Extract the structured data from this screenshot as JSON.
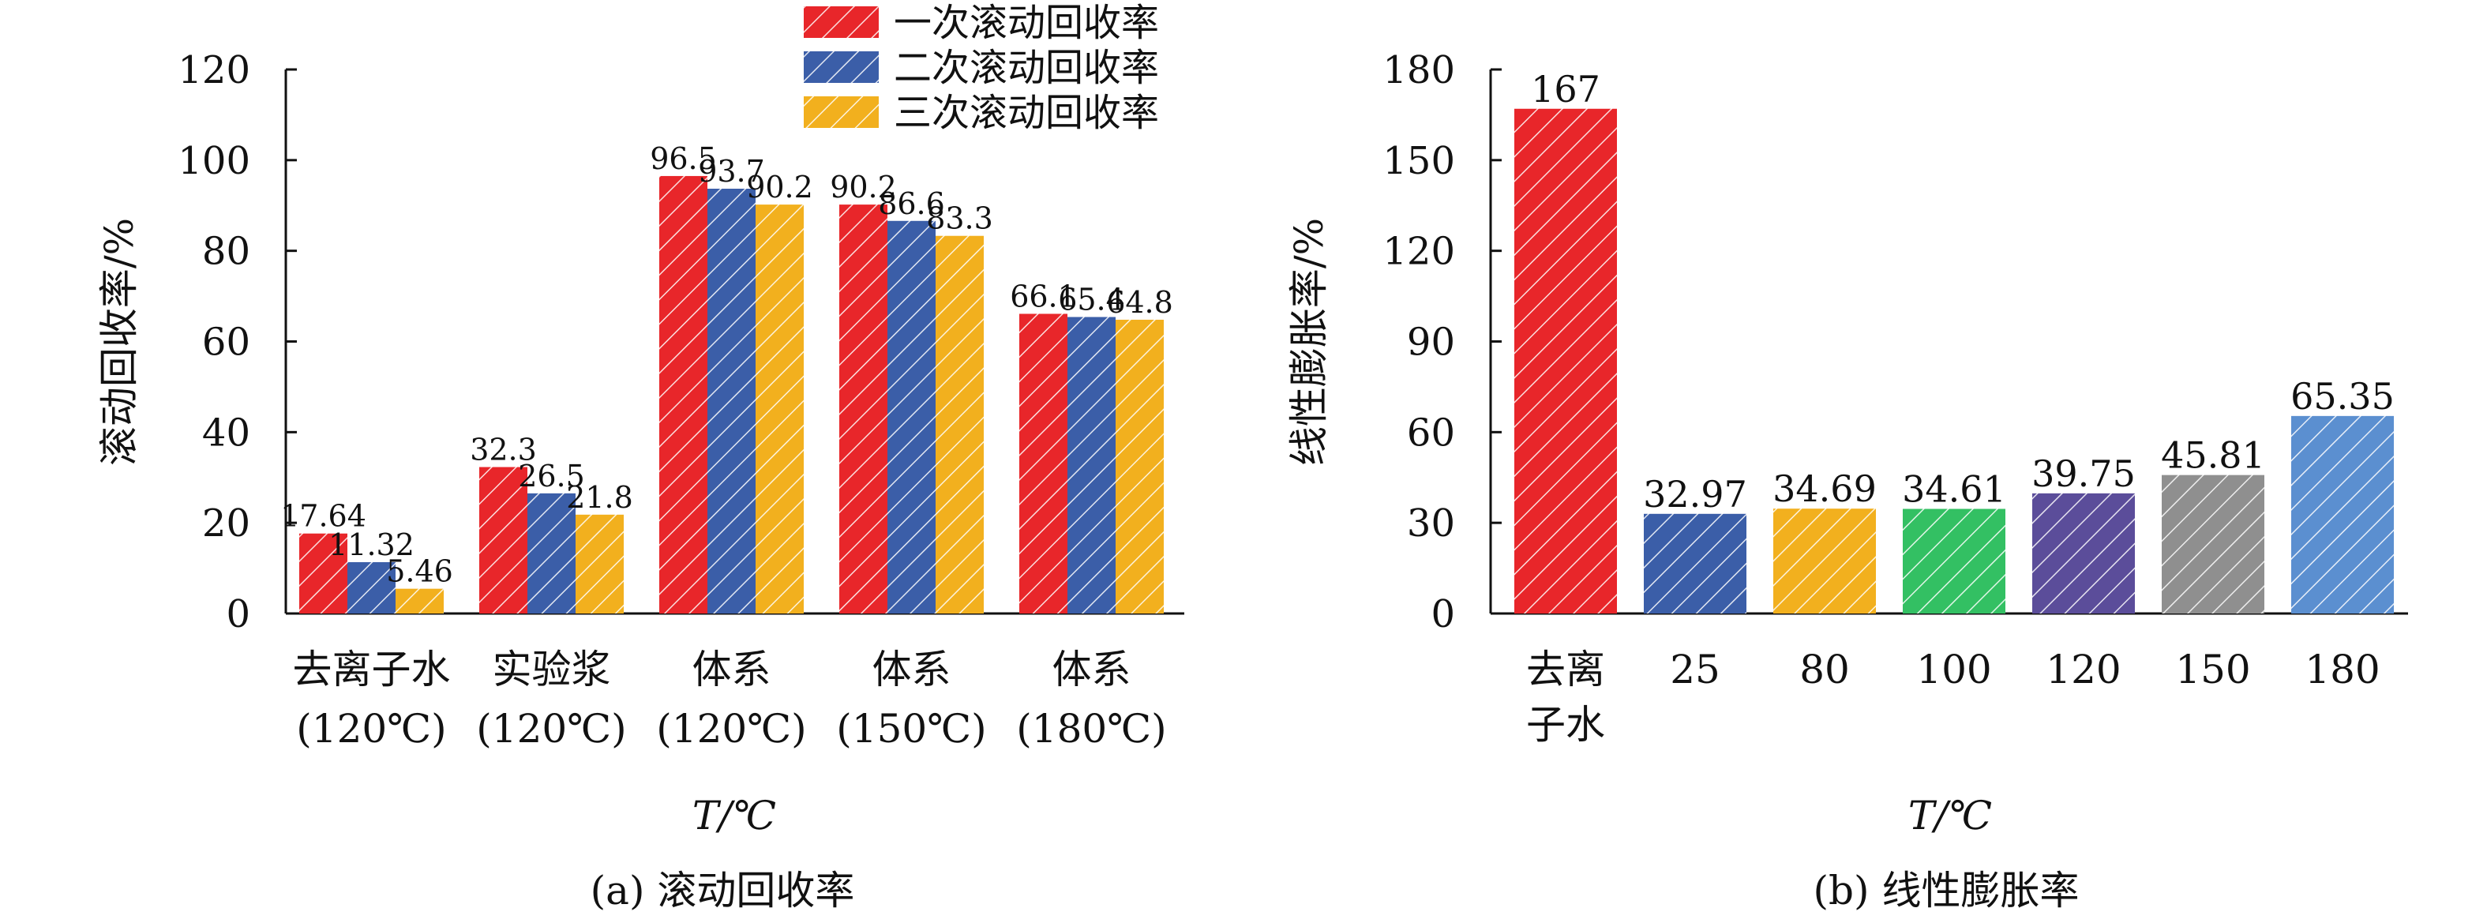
{
  "figure_label": "",
  "chart_data": [
    {
      "type": "bar",
      "panel": "a",
      "caption": "(a) 滚动回收率",
      "xlabel": "T/℃",
      "ylabel": "滚动回收率/%",
      "ylim": [
        0,
        120
      ],
      "yticks": [
        0,
        20,
        40,
        60,
        80,
        100,
        120
      ],
      "categories": [
        [
          "去离子水",
          "(120℃)"
        ],
        [
          "实验浆",
          "(120℃)"
        ],
        [
          "体系",
          "(120℃)"
        ],
        [
          "体系",
          "(150℃)"
        ],
        [
          "体系",
          "(180℃)"
        ]
      ],
      "series": [
        {
          "name": "一次滚动回收率",
          "color": "#e8262a",
          "values": [
            17.64,
            32.3,
            96.5,
            90.2,
            66.1
          ],
          "labels": [
            "17.64",
            "32.3",
            "96.5",
            "90.2",
            "66.1"
          ]
        },
        {
          "name": "二次滚动回收率",
          "color": "#3b5ea8",
          "values": [
            11.32,
            26.5,
            93.7,
            86.6,
            65.4
          ],
          "labels": [
            "11.32",
            "26.5",
            "93.7",
            "86.6",
            "65.4"
          ]
        },
        {
          "name": "三次滚动回收率",
          "color": "#f2b01e",
          "values": [
            5.46,
            21.8,
            90.2,
            83.3,
            64.8
          ],
          "labels": [
            "5.46",
            "21.8",
            "90.2",
            "83.3",
            "64.8"
          ]
        }
      ],
      "legend_position": "top-right",
      "grid": false,
      "bar_pattern": "diagonal-hatch"
    },
    {
      "type": "bar",
      "panel": "b",
      "caption": "(b) 线性膨胀率",
      "xlabel": "T/℃",
      "ylabel": "线性膨胀率/%",
      "ylim": [
        0,
        180
      ],
      "yticks": [
        0,
        30,
        60,
        90,
        120,
        150,
        180
      ],
      "categories": [
        [
          "去离",
          "子水"
        ],
        [
          "25"
        ],
        [
          "80"
        ],
        [
          "100"
        ],
        [
          "120"
        ],
        [
          "150"
        ],
        [
          "180"
        ]
      ],
      "values": [
        167,
        32.97,
        34.69,
        34.61,
        39.75,
        45.81,
        65.35
      ],
      "labels": [
        "167",
        "32.97",
        "34.69",
        "34.61",
        "39.75",
        "45.81",
        "65.35"
      ],
      "colors": [
        "#e8262a",
        "#3b5ea8",
        "#f2b01e",
        "#33c063",
        "#5b4d9a",
        "#8f8f8f",
        "#5b8fd0"
      ],
      "grid": false,
      "bar_pattern": "diagonal-hatch"
    }
  ]
}
